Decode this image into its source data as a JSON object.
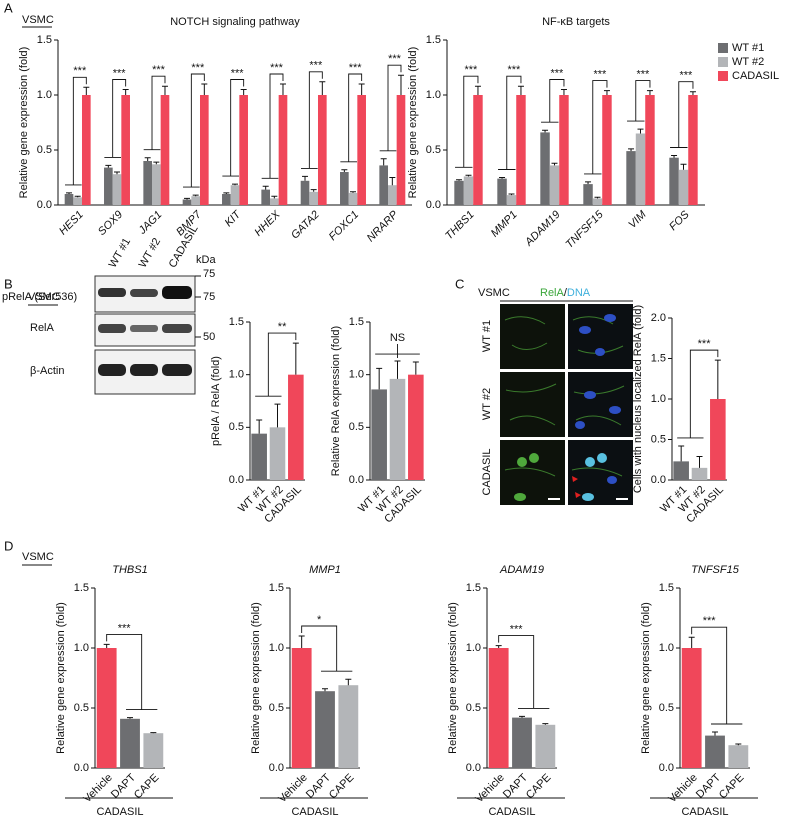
{
  "chart_data": [
    {
      "type": "bar",
      "title": "NOTCH signaling pathway",
      "y_label": "Relative gene expression (fold)",
      "categories": [
        "HES1",
        "SOX9",
        "JAG1",
        "BMP7",
        "KIT",
        "HHEX",
        "GATA2",
        "FOXC1",
        "NRARP"
      ],
      "series": [
        {
          "name": "WT #1",
          "color": "#6d6e71",
          "values": [
            0.1,
            0.34,
            0.4,
            0.05,
            0.1,
            0.14,
            0.22,
            0.3,
            0.36
          ],
          "errors": [
            0.01,
            0.02,
            0.03,
            0.01,
            0.01,
            0.03,
            0.04,
            0.02,
            0.06
          ]
        },
        {
          "name": "WT #2",
          "color": "#b3b5b8",
          "values": [
            0.07,
            0.28,
            0.37,
            0.08,
            0.18,
            0.06,
            0.12,
            0.11,
            0.18
          ],
          "errors": [
            0.01,
            0.02,
            0.02,
            0.01,
            0.01,
            0.02,
            0.02,
            0.01,
            0.07
          ]
        },
        {
          "name": "CADASIL",
          "color": "#f0475a",
          "values": [
            1.0,
            1.0,
            1.0,
            1.0,
            1.0,
            1.0,
            1.0,
            1.0,
            1.0
          ],
          "errors": [
            0.07,
            0.05,
            0.08,
            0.1,
            0.05,
            0.1,
            0.12,
            0.1,
            0.18
          ]
        }
      ],
      "significance": [
        "***",
        "***",
        "***",
        "***",
        "***",
        "***",
        "***",
        "***",
        "***"
      ],
      "ylim": [
        0,
        1.5
      ],
      "yticks": [
        {
          "value": 0,
          "label": "0.0"
        },
        0.5,
        {
          "value": 1,
          "label": "1.0"
        },
        1.5
      ]
    },
    {
      "type": "bar",
      "title": "NF-κB targets",
      "y_label": "Relative gene expression (fold)",
      "categories": [
        "THBS1",
        "MMP1",
        "ADAM19",
        "TNFSF15",
        "VIM",
        "FOS"
      ],
      "series": [
        {
          "name": "WT #1",
          "color": "#6d6e71",
          "values": [
            0.22,
            0.24,
            0.66,
            0.19,
            0.49,
            0.43
          ],
          "errors": [
            0.01,
            0.01,
            0.02,
            0.02,
            0.02,
            0.02
          ]
        },
        {
          "name": "WT #2",
          "color": "#b3b5b8",
          "values": [
            0.26,
            0.09,
            0.36,
            0.06,
            0.65,
            0.32
          ],
          "errors": [
            0.01,
            0.01,
            0.02,
            0.01,
            0.04,
            0.05
          ]
        },
        {
          "name": "CADASIL",
          "color": "#f0475a",
          "values": [
            1.0,
            1.0,
            1.0,
            1.0,
            1.0,
            1.0
          ],
          "errors": [
            0.08,
            0.08,
            0.05,
            0.04,
            0.04,
            0.03
          ]
        }
      ],
      "significance": [
        "***",
        "***",
        "***",
        "***",
        "***",
        "***"
      ],
      "legend": "right",
      "ylim": [
        0,
        1.5
      ],
      "yticks": [
        {
          "value": 0,
          "label": "0.0"
        },
        0.5,
        {
          "value": 1,
          "label": "1.0"
        },
        1.5
      ]
    },
    {
      "type": "bar",
      "y_label": "pRelA / RelA (fold)",
      "categories": [
        "WT #1",
        "WT #2",
        "CADASIL"
      ],
      "values": [
        0.44,
        0.5,
        1.0
      ],
      "errors": [
        0.13,
        0.22,
        0.3
      ],
      "colors": [
        "#6d6e71",
        "#b3b5b8",
        "#f0475a"
      ],
      "significance": "**",
      "ylim": [
        0,
        1.5
      ],
      "yticks": [
        {
          "value": 0,
          "label": "0.0"
        },
        0.5,
        {
          "value": 1,
          "label": "1.0"
        },
        1.5
      ]
    },
    {
      "type": "bar",
      "y_label": "Relative RelA expression (fold)",
      "categories": [
        "WT #1",
        "WT #2",
        "CADASIL"
      ],
      "values": [
        0.86,
        0.96,
        1.0
      ],
      "errors": [
        0.2,
        0.17,
        0.12
      ],
      "colors": [
        "#6d6e71",
        "#b3b5b8",
        "#f0475a"
      ],
      "significance": "NS",
      "ylim": [
        0,
        1.5
      ],
      "yticks": [
        {
          "value": 0,
          "label": "0.0"
        },
        0.5,
        {
          "value": 1,
          "label": "1.0"
        },
        1.5
      ]
    },
    {
      "type": "bar",
      "y_label": "Cells with nucleus localized RelA (fold)",
      "categories": [
        "WT #1",
        "WT #2",
        "CADASIL"
      ],
      "values": [
        0.23,
        0.15,
        1.0
      ],
      "errors": [
        0.19,
        0.14,
        0.48
      ],
      "colors": [
        "#6d6e71",
        "#b3b5b8",
        "#f0475a"
      ],
      "significance": "***",
      "ylim": [
        0,
        2
      ],
      "yticks": [
        {
          "value": 0,
          "label": "0.0"
        },
        0.5,
        {
          "value": 1,
          "label": "1.0"
        },
        1.5,
        {
          "value": 2,
          "label": "2.0"
        }
      ]
    },
    {
      "type": "bar",
      "title": "THBS1",
      "y_label": "Relative gene expression (fold)",
      "categories": [
        "Vehicle",
        "DAPT",
        "CAPE"
      ],
      "values": [
        1.0,
        0.41,
        0.29
      ],
      "errors": [
        0.03,
        0.01,
        0.005
      ],
      "colors": [
        "#f0475a",
        "#6d6e71",
        "#b3b5b8"
      ],
      "significance": "***",
      "group_label": "CADASIL",
      "ylim": [
        0,
        1.5
      ],
      "yticks": [
        {
          "value": 0,
          "label": "0.0"
        },
        0.5,
        {
          "value": 1,
          "label": "1.0"
        },
        1.5
      ]
    },
    {
      "type": "bar",
      "title": "MMP1",
      "y_label": "Relative gene expression (fold)",
      "categories": [
        "Vehicle",
        "DAPT",
        "CAPE"
      ],
      "values": [
        1.0,
        0.64,
        0.69
      ],
      "errors": [
        0.1,
        0.02,
        0.05
      ],
      "colors": [
        "#f0475a",
        "#6d6e71",
        "#b3b5b8"
      ],
      "significance": "*",
      "group_label": "CADASIL",
      "ylim": [
        0,
        1.5
      ],
      "yticks": [
        {
          "value": 0,
          "label": "0.0"
        },
        0.5,
        {
          "value": 1,
          "label": "1.0"
        },
        1.5
      ]
    },
    {
      "type": "bar",
      "title": "ADAM19",
      "y_label": "Relative gene expression (fold)",
      "categories": [
        "Vehicle",
        "DAPT",
        "CAPE"
      ],
      "values": [
        1.0,
        0.42,
        0.36
      ],
      "errors": [
        0.02,
        0.01,
        0.01
      ],
      "colors": [
        "#f0475a",
        "#6d6e71",
        "#b3b5b8"
      ],
      "significance": "***",
      "group_label": "CADASIL",
      "ylim": [
        0,
        1.5
      ],
      "yticks": [
        {
          "value": 0,
          "label": "0.0"
        },
        0.5,
        {
          "value": 1,
          "label": "1.0"
        },
        1.5
      ]
    },
    {
      "type": "bar",
      "title": "TNFSF15",
      "y_label": "Relative gene expression (fold)",
      "categories": [
        "Vehicle",
        "DAPT",
        "CAPE"
      ],
      "values": [
        1.0,
        0.27,
        0.19
      ],
      "errors": [
        0.09,
        0.03,
        0.01
      ],
      "colors": [
        "#f0475a",
        "#6d6e71",
        "#b3b5b8"
      ],
      "significance": "***",
      "group_label": "CADASIL",
      "ylim": [
        0,
        1.5
      ],
      "yticks": [
        {
          "value": 0,
          "label": "0.0"
        },
        0.5,
        {
          "value": 1,
          "label": "1.0"
        },
        1.5
      ]
    }
  ],
  "figure": {
    "panel_labels": [
      "A",
      "B",
      "C",
      "D"
    ],
    "cell_line": "VSMC",
    "blot": {
      "lanes": [
        "WT #1",
        "WT #2",
        "CADASIL"
      ],
      "unit": "kDa",
      "markers": [
        "75",
        "75",
        "50"
      ],
      "rows": [
        "pRelA (Ser536)",
        "RelA",
        "β-Actin"
      ]
    },
    "imaging": {
      "channels": [
        {
          "label": "RelA",
          "color": "#3aa63a"
        },
        {
          "label": "DNA",
          "color": "#3fb0dc"
        }
      ],
      "separator": "/",
      "rows": [
        "WT #1",
        "WT #2",
        "CADASIL"
      ]
    }
  }
}
